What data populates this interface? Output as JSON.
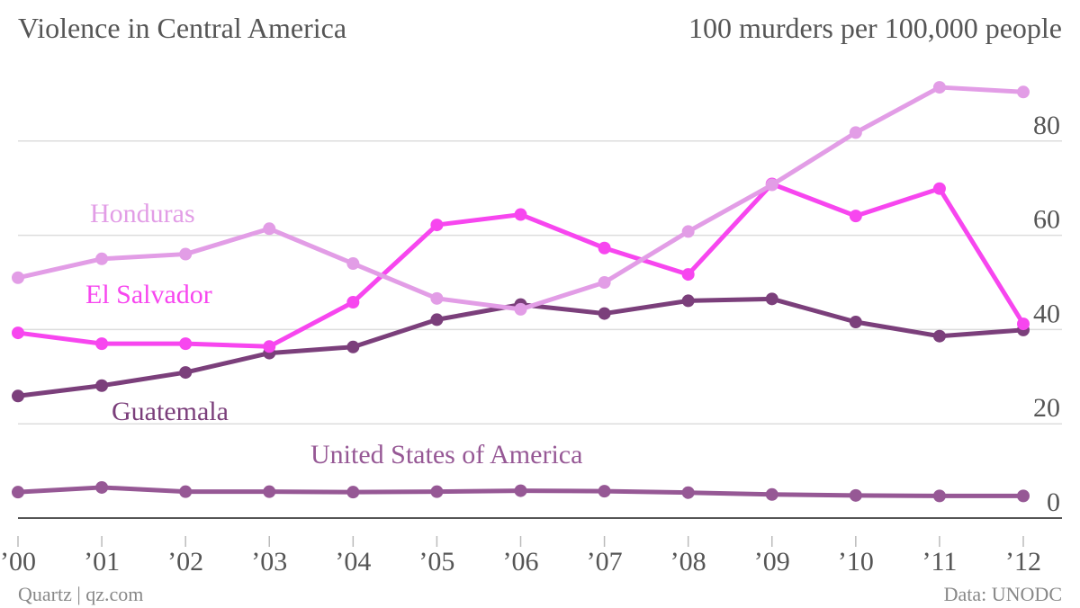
{
  "chart_data": {
    "type": "line",
    "title": "Violence in Central America",
    "subtitle": "100 murders per 100,000 people",
    "x": [
      "’00",
      "’01",
      "’02",
      "’03",
      "’04",
      "’05",
      "’06",
      "’07",
      "’08",
      "’09",
      "’10",
      "’11",
      "’12"
    ],
    "ylim": [
      0,
      100
    ],
    "yticks": [
      0,
      20,
      40,
      60,
      80
    ],
    "grid": true,
    "series": [
      {
        "name": "Honduras",
        "color": "#e29de6",
        "values": [
          51,
          55,
          56,
          61.4,
          54,
          46.6,
          44.3,
          50,
          60.8,
          70.7,
          81.8,
          91.4,
          90.4
        ]
      },
      {
        "name": "El Salvador",
        "color": "#f746ef",
        "values": [
          39.3,
          37,
          37,
          36.4,
          45.8,
          62.2,
          64.4,
          57.3,
          51.7,
          70.9,
          64.1,
          69.9,
          41.2
        ]
      },
      {
        "name": "Guatemala",
        "color": "#7b3f7b",
        "values": [
          25.9,
          28.1,
          30.9,
          35,
          36.3,
          42.1,
          45.3,
          43.4,
          46.1,
          46.5,
          41.6,
          38.6,
          39.9
        ]
      },
      {
        "name": "United States of America",
        "color": "#965895",
        "values": [
          5.5,
          6.5,
          5.6,
          5.6,
          5.5,
          5.6,
          5.8,
          5.7,
          5.4,
          5,
          4.8,
          4.7,
          4.7
        ]
      }
    ],
    "legend": "inline labels near lines"
  },
  "footer": {
    "source_left": "Quartz | qz.com",
    "source_right": "Data: UNODC"
  }
}
